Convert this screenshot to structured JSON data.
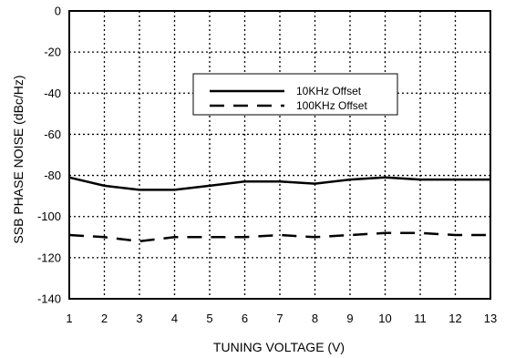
{
  "chart_data": {
    "type": "line",
    "title": "",
    "xlabel": "TUNING VOLTAGE (V)",
    "ylabel": "SSB PHASE NOISE (dBc/Hz)",
    "xlim": [
      1,
      13
    ],
    "ylim": [
      -140,
      0
    ],
    "x_ticks": [
      1,
      2,
      3,
      4,
      5,
      6,
      7,
      8,
      9,
      10,
      11,
      12,
      13
    ],
    "y_ticks": [
      0,
      -20,
      -40,
      -60,
      -80,
      -100,
      -120,
      -140
    ],
    "grid": true,
    "grid_style": "dotted",
    "legend_position": "upper-center",
    "series": [
      {
        "name": "10KHz Offset",
        "style": "solid",
        "color": "#000000",
        "x": [
          1,
          2,
          3,
          4,
          5,
          6,
          7,
          8,
          9,
          10,
          11,
          12,
          13
        ],
        "y": [
          -81,
          -85,
          -87,
          -87,
          -85,
          -83,
          -83,
          -84,
          -82,
          -81,
          -82,
          -82,
          -82
        ]
      },
      {
        "name": "100KHz Offset",
        "style": "dashed",
        "color": "#000000",
        "x": [
          1,
          2,
          3,
          4,
          5,
          6,
          7,
          8,
          9,
          10,
          11,
          12,
          13
        ],
        "y": [
          -109,
          -110,
          -112,
          -110,
          -110,
          -110,
          -109,
          -110,
          -109,
          -108,
          -108,
          -109,
          -109
        ]
      }
    ]
  }
}
